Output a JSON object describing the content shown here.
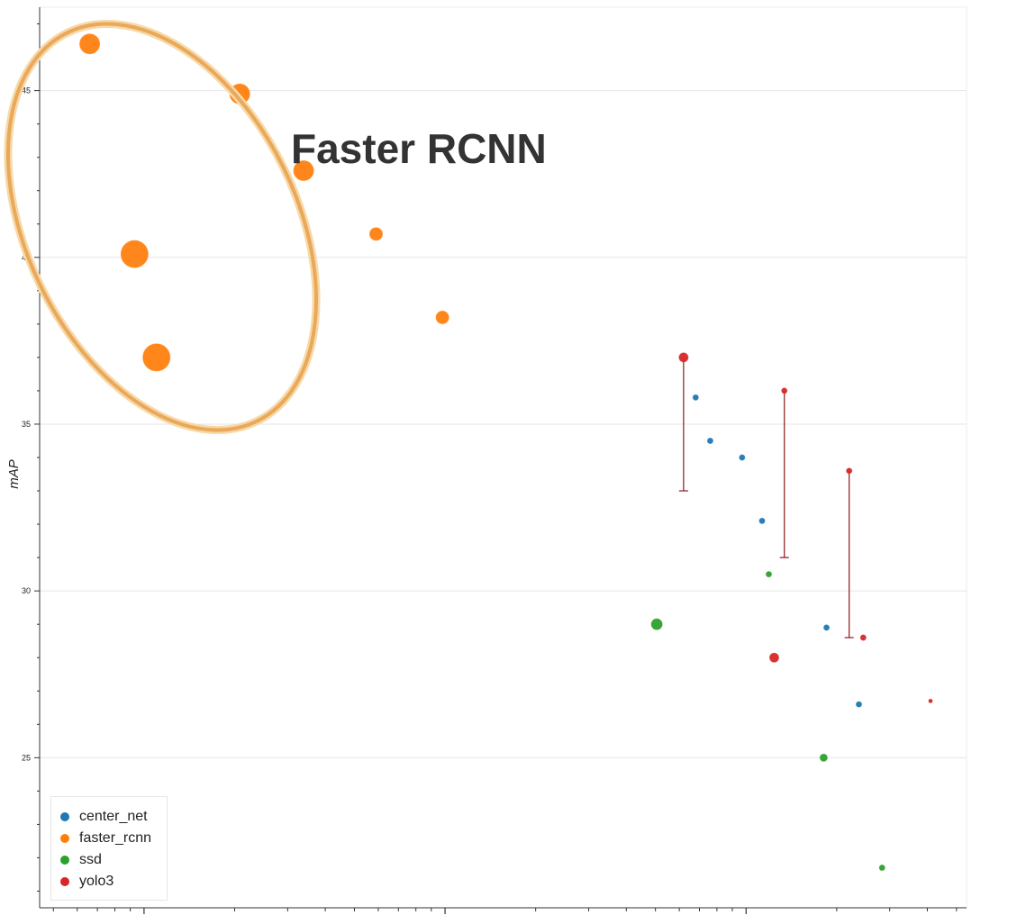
{
  "chart_data": {
    "type": "scatter",
    "title": "",
    "xlabel": "",
    "ylabel": "mAP",
    "xscale": "log",
    "ylim": [
      20.5,
      47.5
    ],
    "y_ticks": [
      25,
      30,
      35,
      40,
      45
    ],
    "grid": "horizontal",
    "legend_placement": "bottom-left",
    "annotation": "Faster RCNN",
    "colors": {
      "center_net": "#1f77b4",
      "faster_rcnn": "#ff7f0e",
      "ssd": "#2ca02c",
      "yolo3": "#d62728",
      "ellipse": "#e9a85a",
      "errorbar": "#8b1a1a",
      "gridline": "#e6e6e6"
    },
    "series": [
      {
        "name": "center_net",
        "points": [
          {
            "x": 0.68,
            "y": 35.8,
            "size": 3
          },
          {
            "x": 0.76,
            "y": 34.5,
            "size": 3
          },
          {
            "x": 0.97,
            "y": 34.0,
            "size": 3
          },
          {
            "x": 1.13,
            "y": 32.1,
            "size": 3
          },
          {
            "x": 1.85,
            "y": 28.9,
            "size": 3
          },
          {
            "x": 2.37,
            "y": 26.6,
            "size": 3
          }
        ]
      },
      {
        "name": "faster_rcnn",
        "points": [
          {
            "x": 0.0066,
            "y": 46.4,
            "size": 11
          },
          {
            "x": 0.0208,
            "y": 44.9,
            "size": 11
          },
          {
            "x": 0.0339,
            "y": 42.6,
            "size": 11
          },
          {
            "x": 0.059,
            "y": 40.7,
            "size": 7
          },
          {
            "x": 0.0093,
            "y": 40.1,
            "size": 15
          },
          {
            "x": 0.098,
            "y": 38.2,
            "size": 7
          },
          {
            "x": 0.011,
            "y": 37.0,
            "size": 15
          }
        ]
      },
      {
        "name": "ssd",
        "points": [
          {
            "x": 0.505,
            "y": 29.0,
            "size": 6
          },
          {
            "x": 1.19,
            "y": 30.5,
            "size": 3
          },
          {
            "x": 1.81,
            "y": 25.0,
            "size": 4
          },
          {
            "x": 2.83,
            "y": 21.7,
            "size": 3
          }
        ]
      },
      {
        "name": "yolo3",
        "points": [
          {
            "x": 0.62,
            "y": 37.0,
            "size": 5,
            "err_low": 33.0
          },
          {
            "x": 1.34,
            "y": 36.0,
            "size": 3,
            "err_low": 31.0
          },
          {
            "x": 2.2,
            "y": 33.6,
            "size": 3,
            "err_low": 28.6
          },
          {
            "x": 1.24,
            "y": 28.0,
            "size": 5
          },
          {
            "x": 2.45,
            "y": 28.6,
            "size": 3
          },
          {
            "x": 4.1,
            "y": 26.7,
            "size": 2
          }
        ]
      }
    ]
  },
  "legend": {
    "items": [
      {
        "label": "center_net",
        "color": "#1f77b4"
      },
      {
        "label": "faster_rcnn",
        "color": "#ff7f0e"
      },
      {
        "label": "ssd",
        "color": "#2ca02c"
      },
      {
        "label": "yolo3",
        "color": "#d62728"
      }
    ]
  }
}
